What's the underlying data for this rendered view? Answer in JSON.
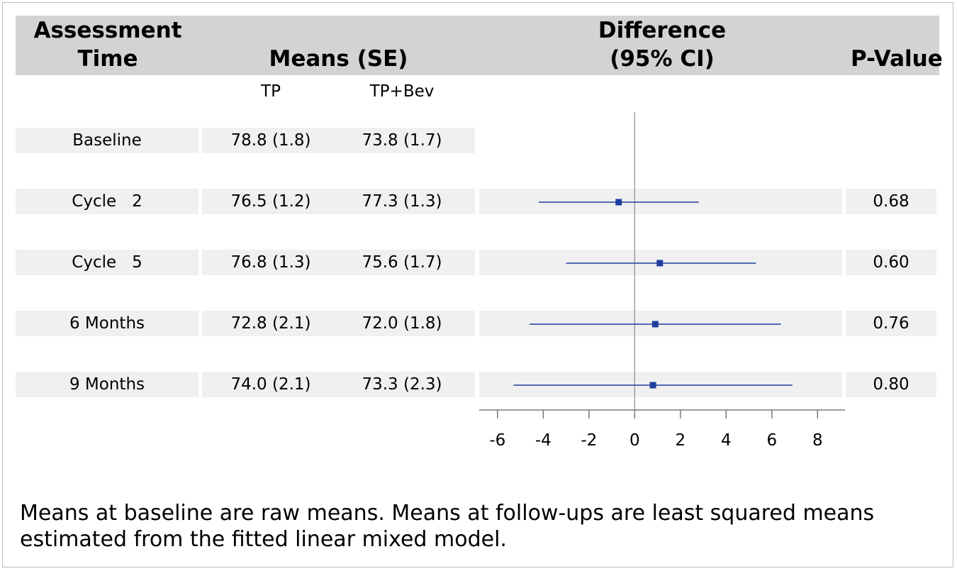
{
  "header": {
    "assessment_time": [
      "Assessment",
      "Time"
    ],
    "means": "Means (SE)",
    "difference": [
      "Difference",
      "(95% CI)"
    ],
    "pvalue": "P-Value"
  },
  "subheader": {
    "tp": "TP",
    "tpbev": "TP+Bev"
  },
  "footnote": "Means at baseline are raw means. Means at follow-ups are least squared means estimated from the fitted linear mixed model.",
  "chart_data": {
    "type": "forest",
    "title": "",
    "xlabel": "",
    "ylabel": "",
    "xlim": [
      -6.8,
      9.2
    ],
    "xticks": [
      -6,
      -4,
      -2,
      0,
      2,
      4,
      6,
      8
    ],
    "reference_line": 0,
    "colors": {
      "marker": "#1f3f9f",
      "reference": "#a0a0a0",
      "band": "#f0f0f0",
      "header": "#d3d3d3"
    },
    "rows": [
      {
        "label": "Baseline",
        "tp": "78.8 (1.8)",
        "tpbev": "73.8 (1.7)",
        "diff": null,
        "lo": null,
        "hi": null,
        "p": ""
      },
      {
        "label": "Cycle   2",
        "tp": "76.5 (1.2)",
        "tpbev": "77.3 (1.3)",
        "diff": -0.7,
        "lo": -4.2,
        "hi": 2.8,
        "p": "0.68"
      },
      {
        "label": "Cycle   5",
        "tp": "76.8 (1.3)",
        "tpbev": "75.6 (1.7)",
        "diff": 1.1,
        "lo": -3.0,
        "hi": 5.3,
        "p": "0.60"
      },
      {
        "label": "6 Months",
        "tp": "72.8 (2.1)",
        "tpbev": "72.0 (1.8)",
        "diff": 0.9,
        "lo": -4.6,
        "hi": 6.4,
        "p": "0.76"
      },
      {
        "label": "9 Months",
        "tp": "74.0 (2.1)",
        "tpbev": "73.3 (2.3)",
        "diff": 0.8,
        "lo": -5.3,
        "hi": 6.9,
        "p": "0.80"
      }
    ]
  }
}
